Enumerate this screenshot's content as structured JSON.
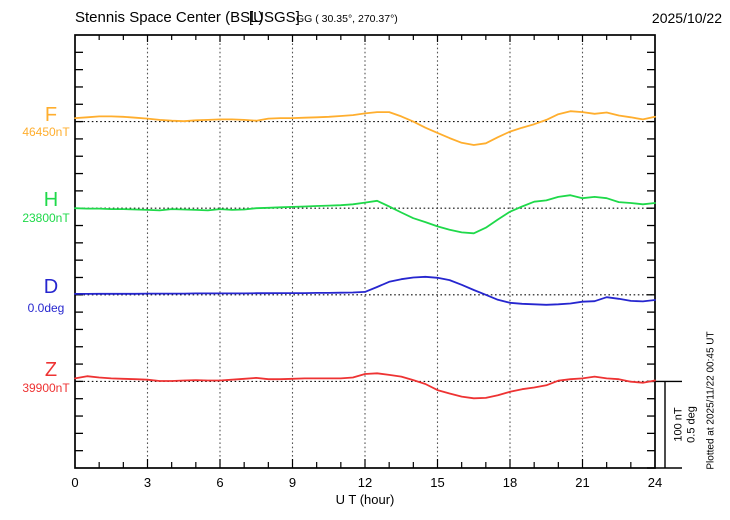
{
  "header": {
    "station": "Stennis Space Center (BSL)",
    "org": "[USGS]",
    "coords": "GG ( 30.35°, 270.37°)",
    "date": "2025/10/22"
  },
  "xaxis": {
    "label": "U T (hour)",
    "tick_labels": [
      "0",
      "3",
      "6",
      "9",
      "12",
      "15",
      "18",
      "21",
      "24"
    ]
  },
  "scale_bar": {
    "line1": "100 nT",
    "line2": "0.5 deg"
  },
  "footer_note": "Plotted at 2025/11/22 00:45 UT",
  "chart_data": {
    "type": "line",
    "title": "Stennis Space Center (BSL) [USGS] magnetogram for 2025/10/22",
    "xlabel": "U T (hour)",
    "x_range_hours": [
      0,
      24
    ],
    "x_major_tick_hours": 3,
    "x_minor_tick_hours": 1,
    "grid": "dotted vertical lines every 3 hours; dotted horizontal baseline per trace",
    "legend_position": "left margin, one colored label per trace",
    "scale_reference": {
      "bar_nT": 100,
      "bar_deg": 0.5,
      "note": "right-side bar spans 100 nT (0.5 deg for D)"
    },
    "style": {
      "grid_color": "#555555",
      "baseline_color": "#111111",
      "frame_color": "#000000"
    },
    "x_hours": [
      0,
      0.5,
      1,
      1.5,
      2,
      2.5,
      3,
      3.5,
      4,
      4.5,
      5,
      5.5,
      6,
      6.5,
      7,
      7.5,
      8,
      8.5,
      9,
      9.5,
      10,
      10.5,
      11,
      11.5,
      12,
      12.5,
      13,
      13.5,
      14,
      14.5,
      15,
      15.5,
      16,
      16.5,
      17,
      17.5,
      18,
      18.5,
      19,
      19.5,
      20,
      20.5,
      21,
      21.5,
      22,
      22.5,
      23,
      23.5,
      24
    ],
    "series": [
      {
        "name": "F",
        "display_label": "F",
        "baseline_label": "46450nT",
        "baseline_value": 46450,
        "unit": "nT",
        "per_bar": 100,
        "color": "#FFAE2E",
        "values": [
          4,
          5,
          6,
          6,
          5.5,
          4.5,
          3.5,
          2,
          1,
          0.5,
          1.5,
          2,
          2.5,
          2.5,
          2,
          1,
          3.5,
          4,
          4,
          4.5,
          5,
          5.5,
          6.5,
          7.5,
          9.5,
          11,
          11,
          6,
          0,
          -7,
          -13,
          -19,
          -24.5,
          -27,
          -25,
          -18,
          -11.5,
          -7,
          -3,
          2,
          8.5,
          12,
          11,
          9,
          10.5,
          7,
          5,
          2.5,
          5.5
        ]
      },
      {
        "name": "H",
        "display_label": "H",
        "baseline_label": "23800nT",
        "baseline_value": 23800,
        "unit": "nT",
        "per_bar": 100,
        "color": "#1FD94A",
        "values": [
          0,
          -0.5,
          -0.5,
          -1,
          -1,
          -1.5,
          -2,
          -2.5,
          -1,
          -1.5,
          -2,
          -2.5,
          -1,
          -2,
          -1.5,
          0,
          0.5,
          1,
          1.5,
          2,
          2.5,
          3,
          3.5,
          4.5,
          6.5,
          8.5,
          2,
          -5,
          -11.5,
          -16,
          -21,
          -25,
          -28,
          -29,
          -22.5,
          -13,
          -4,
          2,
          7.5,
          9,
          13,
          15,
          11.5,
          13,
          11.5,
          7,
          6,
          4.5,
          6
        ]
      },
      {
        "name": "D",
        "display_label": "D",
        "baseline_label": "0.0deg",
        "baseline_value": 0.0,
        "unit": "deg",
        "per_bar": 0.5,
        "color": "#2626CF",
        "values": [
          0.005,
          0.005,
          0.006,
          0.006,
          0.006,
          0.006,
          0.007,
          0.007,
          0.007,
          0.007,
          0.008,
          0.008,
          0.008,
          0.008,
          0.008,
          0.009,
          0.009,
          0.01,
          0.01,
          0.01,
          0.011,
          0.011,
          0.012,
          0.013,
          0.017,
          0.045,
          0.075,
          0.09,
          0.1,
          0.104,
          0.098,
          0.085,
          0.058,
          0.028,
          0,
          -0.029,
          -0.046,
          -0.052,
          -0.055,
          -0.058,
          -0.055,
          -0.05,
          -0.04,
          -0.037,
          -0.014,
          -0.023,
          -0.035,
          -0.038,
          -0.03
        ]
      },
      {
        "name": "Z",
        "display_label": "Z",
        "baseline_label": "39900nT",
        "baseline_value": 39900,
        "unit": "nT",
        "per_bar": 100,
        "color": "#EE3333",
        "values": [
          3.5,
          6,
          4.5,
          3.5,
          3,
          2.5,
          2,
          0.5,
          0.5,
          1,
          1.5,
          1,
          1,
          2,
          3,
          4,
          2.5,
          2.5,
          3,
          3.5,
          3.5,
          3.5,
          3.5,
          4.5,
          8.5,
          9.3,
          7.5,
          5.5,
          1.5,
          -3,
          -10,
          -14,
          -17.5,
          -19.5,
          -19,
          -16,
          -12,
          -9,
          -7,
          -4.5,
          0.8,
          2.5,
          3.5,
          5.5,
          3.5,
          2.5,
          -0.3,
          -1.5,
          1
        ]
      }
    ]
  }
}
